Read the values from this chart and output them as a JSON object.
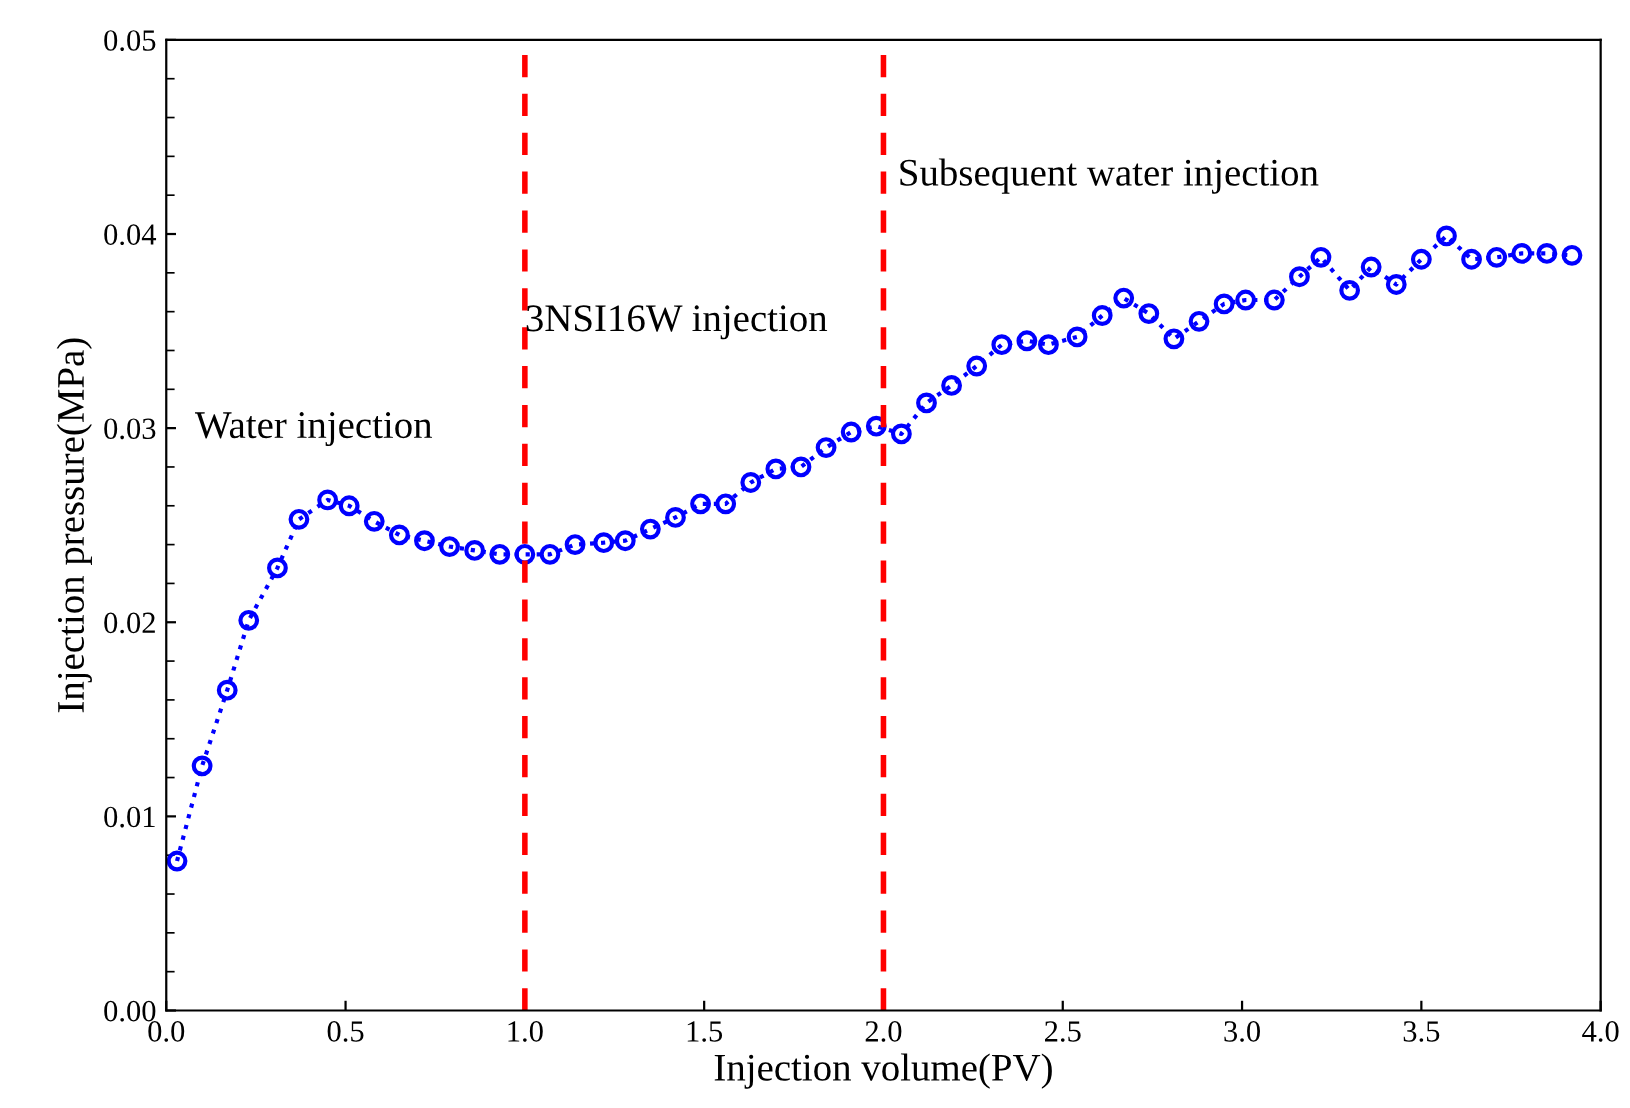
{
  "chart_data": {
    "type": "line",
    "xlabel": "Injection volume(PV)",
    "ylabel": "Injection pressure(MPa)",
    "x": [
      0.03,
      0.1,
      0.17,
      0.23,
      0.31,
      0.37,
      0.45,
      0.51,
      0.58,
      0.65,
      0.72,
      0.79,
      0.86,
      0.93,
      1.0,
      1.07,
      1.14,
      1.22,
      1.28,
      1.35,
      1.42,
      1.49,
      1.56,
      1.63,
      1.7,
      1.77,
      1.84,
      1.91,
      1.98,
      2.05,
      2.12,
      2.19,
      2.26,
      2.33,
      2.4,
      2.46,
      2.54,
      2.61,
      2.67,
      2.74,
      2.81,
      2.88,
      2.95,
      3.01,
      3.09,
      3.16,
      3.22,
      3.3,
      3.36,
      3.43,
      3.5,
      3.57,
      3.64,
      3.71,
      3.78,
      3.85,
      3.92
    ],
    "series": [
      {
        "color": "#0000ff",
        "values": [
          0.0077,
          0.0126,
          0.0165,
          0.0201,
          0.0228,
          0.0253,
          0.0263,
          0.026,
          0.0252,
          0.0245,
          0.0242,
          0.0239,
          0.0237,
          0.0235,
          0.0235,
          0.0235,
          0.024,
          0.0241,
          0.0242,
          0.0248,
          0.0254,
          0.0261,
          0.0261,
          0.0272,
          0.0279,
          0.028,
          0.029,
          0.0298,
          0.0301,
          0.0297,
          0.0313,
          0.0322,
          0.0332,
          0.0343,
          0.0345,
          0.0343,
          0.0347,
          0.0358,
          0.0367,
          0.0359,
          0.0346,
          0.0355,
          0.0364,
          0.0366,
          0.0366,
          0.0378,
          0.0388,
          0.0371,
          0.0383,
          0.0374,
          0.0387,
          0.0399,
          0.0387,
          0.0388,
          0.039,
          0.039,
          0.0389
        ]
      }
    ],
    "marker": "circle",
    "line_style": "dotted",
    "xlim": [
      0.0,
      4.0
    ],
    "xticks": [
      {
        "value": 0,
        "label": "0.0"
      },
      {
        "value": 0.5,
        "label": "0.5"
      },
      {
        "value": 1,
        "label": "1.0"
      },
      {
        "value": 1.5,
        "label": "1.5"
      },
      {
        "value": 2,
        "label": "2.0"
      },
      {
        "value": 2.5,
        "label": "2.5"
      },
      {
        "value": 3,
        "label": "3.0"
      },
      {
        "value": 3.5,
        "label": "3.5"
      },
      {
        "value": 4,
        "label": "4.0"
      }
    ],
    "ylim": [
      0.0,
      0.05
    ],
    "yticks": [
      {
        "value": 0,
        "label": "0.00"
      },
      {
        "value": 0.01,
        "label": "0.01"
      },
      {
        "value": 0.02,
        "label": "0.02"
      },
      {
        "value": 0.03,
        "label": "0.03"
      },
      {
        "value": 0.04,
        "label": "0.04"
      },
      {
        "value": 0.05,
        "label": "0.05"
      }
    ],
    "ref_lines": [
      {
        "axis": "x",
        "value": 1,
        "color": "#ff0000",
        "line_style": "dashed"
      },
      {
        "axis": "x",
        "value": 2,
        "color": "#ff0000",
        "line_style": "dashed"
      }
    ],
    "annotations": [
      "Water injection",
      "3NSI16W injection",
      "Subsequent water injection"
    ],
    "grid": false,
    "legend": false
  }
}
